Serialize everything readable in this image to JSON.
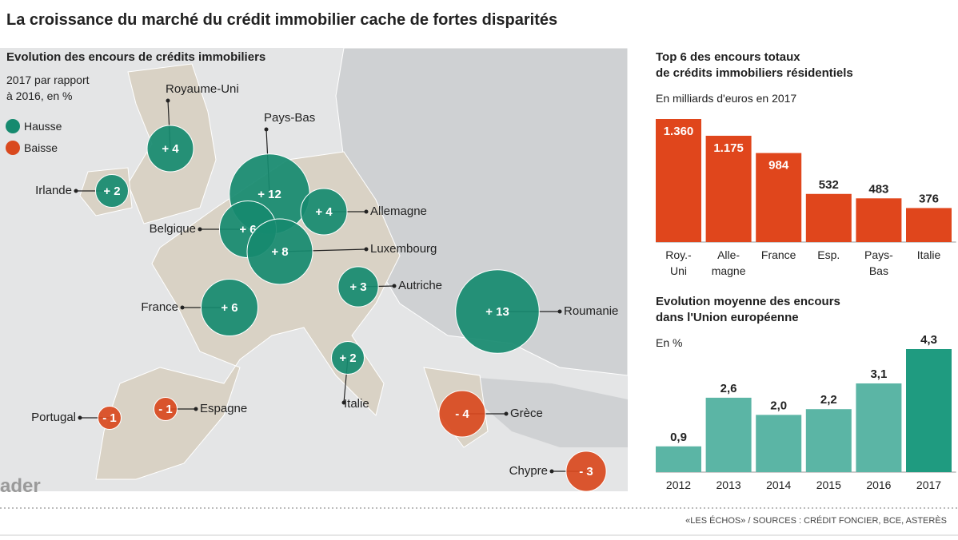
{
  "title": "La croissance du marché du crédit immobilier cache de fortes disparités",
  "source": "«LES ÉCHOS» / SOURCES : CRÉDIT FONCIER, BCE, ASTERÈS",
  "watermark": "ader",
  "chart_data": [
    {
      "type": "bubble_map",
      "title": "Evolution des encours de crédits immobiliers",
      "subtitle": "2017 par rapport\nà 2016, en %",
      "legend": [
        {
          "name": "Hausse",
          "color": "#168a6f"
        },
        {
          "name": "Baisse",
          "color": "#d9491e"
        }
      ],
      "categories": [
        "Royaume-Uni",
        "Irlande",
        "Pays-Bas",
        "Allemagne",
        "Belgique",
        "Luxembourg",
        "Autriche",
        "France",
        "Roumanie",
        "Italie",
        "Portugal",
        "Espagne",
        "Grèce",
        "Chypre"
      ],
      "values": [
        4,
        2,
        12,
        4,
        6,
        8,
        3,
        6,
        13,
        2,
        -1,
        -1,
        -4,
        -3
      ],
      "value_labels": [
        "+ 4",
        "+ 2",
        "+ 12",
        "+ 4",
        "+ 6",
        "+ 8",
        "+ 3",
        "+ 6",
        "+ 13",
        "+ 2",
        "- 1",
        "- 1",
        "- 4",
        "- 3"
      ]
    },
    {
      "type": "bar",
      "title": "Top 6 des encours totaux\nde crédits immobiliers résidentiels",
      "subtitle": "En milliards d'euros en 2017",
      "categories": [
        "Roy.-\nUni",
        "Alle-\nmagne",
        "France",
        "Esp.",
        "Pays-\nBas",
        "Italie"
      ],
      "values": [
        1360,
        1175,
        984,
        532,
        483,
        376
      ],
      "value_labels": [
        "1.360",
        "1.175",
        "984",
        "532",
        "483",
        "376"
      ],
      "color": "#e0461c"
    },
    {
      "type": "bar",
      "title": "Evolution moyenne des encours\ndans l'Union européenne",
      "subtitle": "En %",
      "categories": [
        "2012",
        "2013",
        "2014",
        "2015",
        "2016",
        "2017"
      ],
      "values": [
        0.9,
        2.6,
        2.0,
        2.2,
        3.1,
        4.3
      ],
      "value_labels": [
        "0,9",
        "2,6",
        "2,0",
        "2,2",
        "3,1",
        "4,3"
      ],
      "colors": [
        "#5bb5a5",
        "#5bb5a5",
        "#5bb5a5",
        "#5bb5a5",
        "#5bb5a5",
        "#1f9b80"
      ]
    }
  ]
}
